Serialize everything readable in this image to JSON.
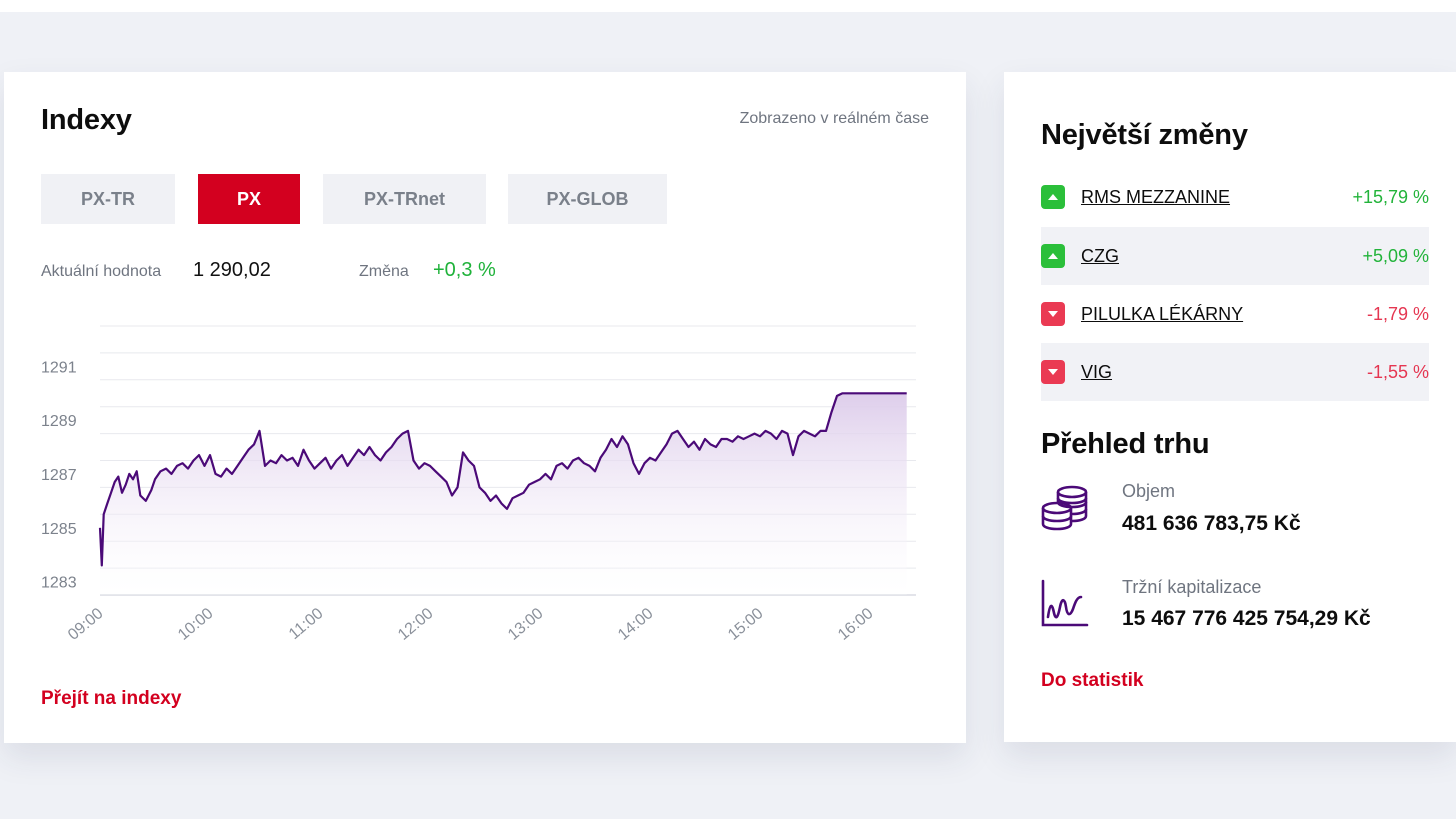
{
  "indexy": {
    "title": "Indexy",
    "realtime_note": "Zobrazeno v reálném čase",
    "tabs": [
      {
        "label": "PX-TR",
        "active": false
      },
      {
        "label": "PX",
        "active": true
      },
      {
        "label": "PX-TRnet",
        "active": false
      },
      {
        "label": "PX-GLOB",
        "active": false
      }
    ],
    "current_label": "Aktuální hodnota",
    "current_value": "1 290,02",
    "change_label": "Změna",
    "change_value": "+0,3 %",
    "link": "Přejít na indexy"
  },
  "chart_data": {
    "type": "area",
    "title": "",
    "xlabel": "",
    "ylabel": "",
    "y_ticks": [
      1283,
      1285,
      1287,
      1289,
      1291
    ],
    "x_ticks": [
      "09:00",
      "10:00",
      "11:00",
      "12:00",
      "13:00",
      "14:00",
      "15:00",
      "16:00"
    ],
    "ylim": [
      1282.5,
      1292.5
    ],
    "line_color": "#4b0a78",
    "fill_color": "#e4d7ee",
    "series": [
      {
        "name": "PX",
        "x": [
          "09:00",
          "09:01",
          "09:02",
          "09:04",
          "09:06",
          "09:08",
          "09:10",
          "09:12",
          "09:14",
          "09:16",
          "09:18",
          "09:20",
          "09:22",
          "09:25",
          "09:28",
          "09:30",
          "09:33",
          "09:36",
          "09:39",
          "09:42",
          "09:45",
          "09:48",
          "09:51",
          "09:54",
          "09:57",
          "10:00",
          "10:03",
          "10:06",
          "10:09",
          "10:12",
          "10:15",
          "10:18",
          "10:21",
          "10:24",
          "10:27",
          "10:30",
          "10:33",
          "10:36",
          "10:39",
          "10:42",
          "10:45",
          "10:48",
          "10:51",
          "10:54",
          "10:57",
          "11:00",
          "11:03",
          "11:06",
          "11:09",
          "11:12",
          "11:15",
          "11:18",
          "11:21",
          "11:24",
          "11:27",
          "11:30",
          "11:33",
          "11:36",
          "11:39",
          "11:42",
          "11:45",
          "11:48",
          "11:51",
          "11:54",
          "11:57",
          "12:00",
          "12:03",
          "12:06",
          "12:09",
          "12:12",
          "12:15",
          "12:18",
          "12:21",
          "12:24",
          "12:27",
          "12:30",
          "12:33",
          "12:36",
          "12:39",
          "12:42",
          "12:45",
          "12:48",
          "12:51",
          "12:54",
          "12:57",
          "13:00",
          "13:03",
          "13:06",
          "13:09",
          "13:12",
          "13:15",
          "13:18",
          "13:21",
          "13:24",
          "13:27",
          "13:30",
          "13:33",
          "13:36",
          "13:39",
          "13:42",
          "13:45",
          "13:48",
          "13:51",
          "13:54",
          "13:57",
          "14:00",
          "14:03",
          "14:06",
          "14:09",
          "14:12",
          "14:15",
          "14:18",
          "14:21",
          "14:24",
          "14:27",
          "14:30",
          "14:33",
          "14:36",
          "14:39",
          "14:42",
          "14:45",
          "14:48",
          "14:51",
          "14:54",
          "14:57",
          "15:00",
          "15:03",
          "15:06",
          "15:09",
          "15:12",
          "15:15",
          "15:18",
          "15:21",
          "15:24",
          "15:27",
          "15:30",
          "15:33",
          "15:36",
          "15:39",
          "15:42",
          "15:45",
          "15:48",
          "15:51",
          "15:54",
          "15:57",
          "16:00",
          "16:03",
          "16:06",
          "16:09",
          "16:12",
          "16:15",
          "16:18",
          "16:20"
        ],
        "values": [
          1285.0,
          1283.6,
          1285.5,
          1285.9,
          1286.3,
          1286.7,
          1286.9,
          1286.3,
          1286.6,
          1287.0,
          1286.8,
          1287.1,
          1286.2,
          1286.0,
          1286.4,
          1286.8,
          1287.1,
          1287.2,
          1287.0,
          1287.3,
          1287.4,
          1287.2,
          1287.5,
          1287.7,
          1287.3,
          1287.7,
          1287.0,
          1286.9,
          1287.2,
          1287.0,
          1287.3,
          1287.6,
          1287.9,
          1288.1,
          1288.6,
          1287.3,
          1287.5,
          1287.4,
          1287.7,
          1287.5,
          1287.6,
          1287.3,
          1287.9,
          1287.5,
          1287.2,
          1287.4,
          1287.6,
          1287.2,
          1287.5,
          1287.7,
          1287.3,
          1287.6,
          1287.9,
          1287.7,
          1288.0,
          1287.7,
          1287.5,
          1287.8,
          1288.0,
          1288.3,
          1288.5,
          1288.6,
          1287.5,
          1287.2,
          1287.4,
          1287.3,
          1287.1,
          1286.9,
          1286.7,
          1286.2,
          1286.5,
          1287.8,
          1287.5,
          1287.3,
          1286.5,
          1286.3,
          1286.0,
          1286.2,
          1285.9,
          1285.7,
          1286.1,
          1286.2,
          1286.3,
          1286.6,
          1286.7,
          1286.8,
          1287.0,
          1286.8,
          1287.3,
          1287.4,
          1287.2,
          1287.5,
          1287.6,
          1287.4,
          1287.3,
          1287.1,
          1287.6,
          1287.9,
          1288.3,
          1288.0,
          1288.4,
          1288.1,
          1287.4,
          1287.0,
          1287.4,
          1287.6,
          1287.5,
          1287.8,
          1288.1,
          1288.5,
          1288.6,
          1288.3,
          1288.0,
          1288.2,
          1287.9,
          1288.3,
          1288.1,
          1288.0,
          1288.3,
          1288.3,
          1288.2,
          1288.4,
          1288.3,
          1288.4,
          1288.5,
          1288.4,
          1288.6,
          1288.5,
          1288.3,
          1288.6,
          1288.5,
          1287.7,
          1288.4,
          1288.6,
          1288.5,
          1288.4,
          1288.6,
          1288.6,
          1289.3,
          1289.9,
          1290.0,
          1290.0,
          1290.0,
          1290.0,
          1290.0,
          1290.0,
          1290.0,
          1290.0,
          1290.0,
          1290.0,
          1290.0,
          1290.0,
          1290.0
        ]
      }
    ],
    "grid": true
  },
  "movers": {
    "title": "Největší změny",
    "items": [
      {
        "name": "RMS MEZZANINE",
        "change": "+15,79 %",
        "direction": "up"
      },
      {
        "name": "CZG",
        "change": "+5,09 %",
        "direction": "up"
      },
      {
        "name": "PILULKA LÉKÁRNY",
        "change": "-1,79 %",
        "direction": "down"
      },
      {
        "name": "VIG",
        "change": "-1,55 %",
        "direction": "down"
      }
    ]
  },
  "market": {
    "title": "Přehled trhu",
    "volume_label": "Objem",
    "volume_value": "481 636 783,75 Kč",
    "volume_icon": "coins-icon",
    "cap_label": "Tržní kapitalizace",
    "cap_value": "15 467 776 425 754,29 Kč",
    "cap_icon": "chart-line-icon",
    "link": "Do statistik"
  },
  "colors": {
    "accent_red": "#d3001f",
    "positive_green": "#22b33a",
    "negative_red": "#e53651",
    "chart_purple": "#4b0a78"
  }
}
